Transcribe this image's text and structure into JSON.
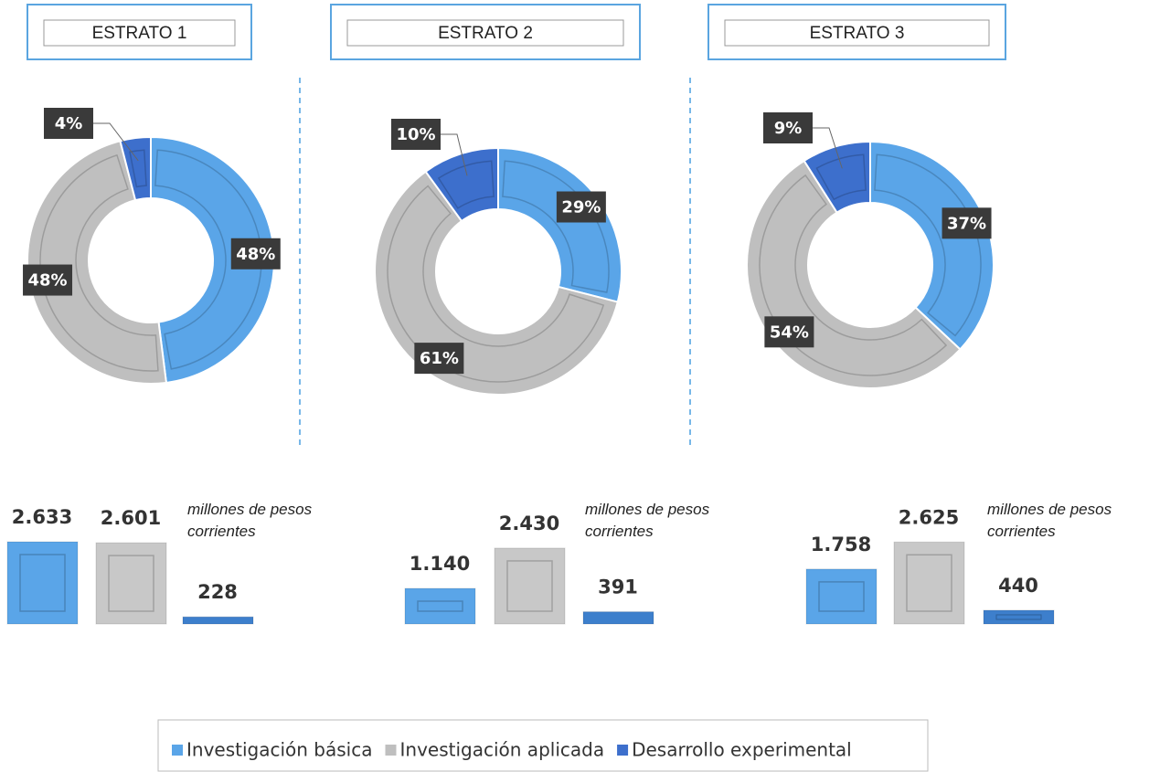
{
  "chart_data": [
    {
      "type": "pie",
      "donut": true,
      "title": "ESTRATO 1",
      "categories": [
        "Investigación básica",
        "Investigación aplicada",
        "Desarrollo experimental"
      ],
      "values": [
        48,
        48,
        4
      ],
      "value_labels": [
        "48%",
        "48%",
        "4%"
      ],
      "colors": [
        "#5aa5e8",
        "#bfbfbf",
        "#3d6fcc"
      ]
    },
    {
      "type": "pie",
      "donut": true,
      "title": "ESTRATO 2",
      "categories": [
        "Investigación básica",
        "Investigación aplicada",
        "Desarrollo experimental"
      ],
      "values": [
        29,
        61,
        10
      ],
      "value_labels": [
        "29%",
        "61%",
        "10%"
      ],
      "colors": [
        "#5aa5e8",
        "#bfbfbf",
        "#3d6fcc"
      ]
    },
    {
      "type": "pie",
      "donut": true,
      "title": "ESTRATO 3",
      "categories": [
        "Investigación básica",
        "Investigación aplicada",
        "Desarrollo experimental"
      ],
      "values": [
        37,
        54,
        9
      ],
      "value_labels": [
        "37%",
        "54%",
        "9%"
      ],
      "colors": [
        "#5aa5e8",
        "#bfbfbf",
        "#3d6fcc"
      ]
    },
    {
      "type": "bar",
      "note": "millones de pesos corrientes",
      "categories": [
        "Investigación básica",
        "Investigación aplicada",
        "Desarrollo experimental"
      ],
      "values": [
        2633,
        2601,
        228
      ],
      "value_labels": [
        "2.633",
        "2.601",
        "228"
      ],
      "colors": [
        "#5aa5e8",
        "#c8c8c8",
        "#3d7fcc"
      ]
    },
    {
      "type": "bar",
      "note": "millones de pesos corrientes",
      "categories": [
        "Investigación básica",
        "Investigación aplicada",
        "Desarrollo experimental"
      ],
      "values": [
        1140,
        2430,
        391
      ],
      "value_labels": [
        "1.140",
        "2.430",
        "391"
      ],
      "colors": [
        "#5aa5e8",
        "#c8c8c8",
        "#3d7fcc"
      ]
    },
    {
      "type": "bar",
      "note": "millones de pesos corrientes",
      "categories": [
        "Investigación básica",
        "Investigación aplicada",
        "Desarrollo experimental"
      ],
      "values": [
        1758,
        2625,
        440
      ],
      "value_labels": [
        "1.758",
        "2.625",
        "440"
      ],
      "colors": [
        "#5aa5e8",
        "#c8c8c8",
        "#3d7fcc"
      ]
    }
  ]
}
